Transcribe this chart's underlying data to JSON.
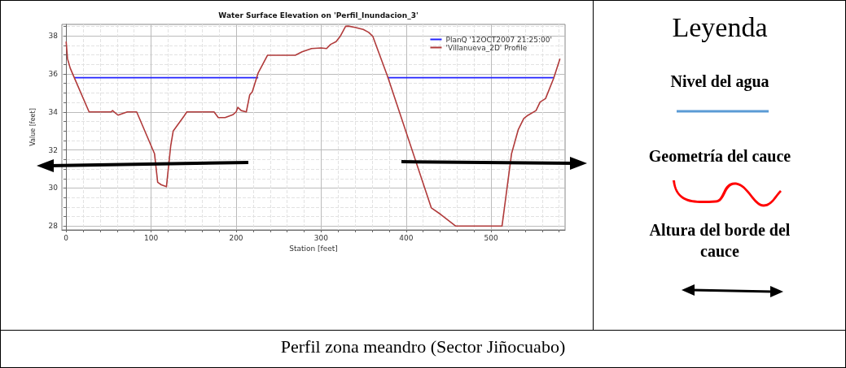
{
  "chart_data": {
    "type": "line",
    "title": "Water Surface Elevation on 'Perfil_Inundacion_3'",
    "xlabel": "Station [feet]",
    "ylabel": "Value [feet]",
    "xlim": [
      -5,
      587
    ],
    "xticks": [
      0,
      100,
      200,
      300,
      400,
      500
    ],
    "ylim": [
      27.8,
      38.6
    ],
    "yticks": [
      28,
      30,
      32,
      34,
      36,
      38
    ],
    "grid": true,
    "legend": "top right",
    "marker": "none",
    "line_style": "solid",
    "series": [
      {
        "name": "PlanQ '12OCT2007 21:25:00'",
        "color": "#2222ff",
        "x": [
          9.6,
          226,
          300,
          378,
          574
        ],
        "values": [
          35.8,
          35.8,
          null,
          35.8,
          35.8
        ]
      },
      {
        "name": "'Villanueva_2D' Profile",
        "color": "#b03a3a",
        "x": [
          0,
          1.6,
          4.8,
          9.6,
          27,
          53,
          54.6,
          61,
          72,
          83,
          104,
          107.7,
          112,
          118,
          123,
          126,
          139,
          142,
          174,
          179,
          187,
          196,
          200,
          202,
          206,
          212,
          216,
          219,
          226,
          237,
          269.6,
          277.6,
          288.8,
          300,
          306.4,
          311.2,
          317.6,
          322.4,
          328.8,
          332,
          340,
          349.6,
          356,
          360.8,
          367.2,
          378.4,
          429.6,
          440.8,
          458.4,
          512.8,
          524,
          532,
          538.4,
          543.2,
          552.8,
          557.6,
          564,
          573.6,
          581
        ],
        "values": [
          37.7,
          36.8,
          36.3,
          35.8,
          34.0,
          34.0,
          34.07,
          33.83,
          34.0,
          34.0,
          31.8,
          30.3,
          30.17,
          30.07,
          32.2,
          33.0,
          33.8,
          34.0,
          34.0,
          33.7,
          33.7,
          33.85,
          34.0,
          34.24,
          34.07,
          34.0,
          34.9,
          35.06,
          36.06,
          36.98,
          36.98,
          37.16,
          37.33,
          37.36,
          37.33,
          37.55,
          37.69,
          37.97,
          38.5,
          38.51,
          38.44,
          38.33,
          38.18,
          37.97,
          37.19,
          35.84,
          28.96,
          28.61,
          28.0,
          28.0,
          31.8,
          33.08,
          33.65,
          33.82,
          34.07,
          34.52,
          34.7,
          35.77,
          36.8
        ]
      }
    ],
    "annotations": [
      "Leyenda",
      "Nivel del agua",
      "Geometría del cauce",
      "Altura del borde del cauce",
      "Perfil zona meandro (Sector Jiñocuabo)"
    ]
  }
}
